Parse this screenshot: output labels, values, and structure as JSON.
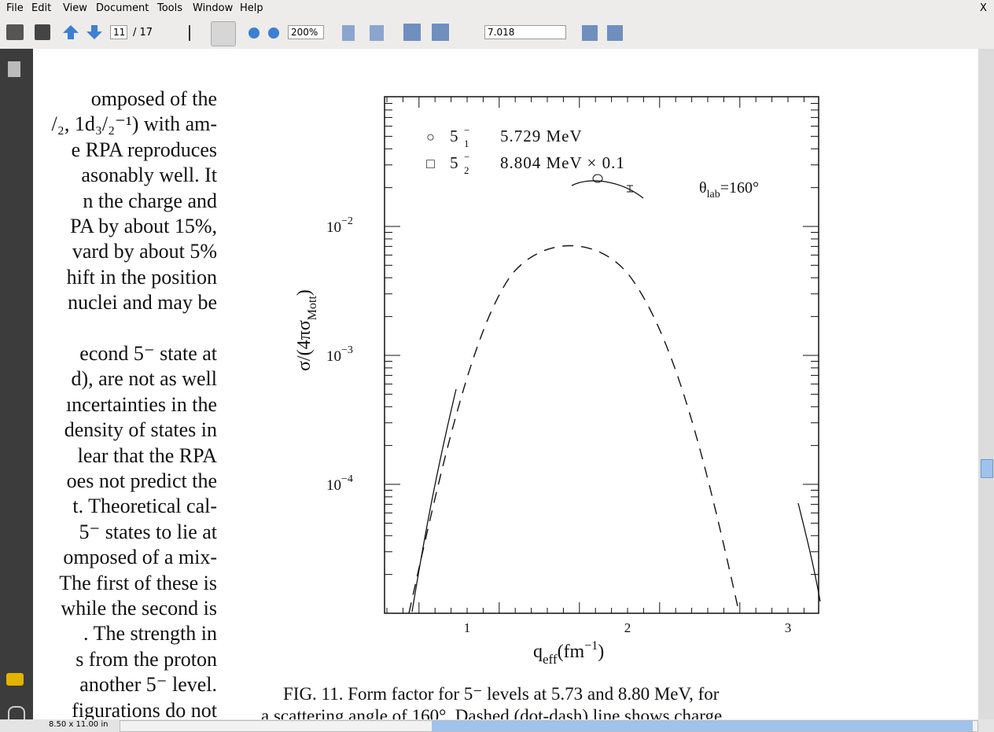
{
  "menu": [
    "File",
    "Edit",
    "View",
    "Document",
    "Tools",
    "Window",
    "Help"
  ],
  "close": "X",
  "toolbar": {
    "page": "11",
    "page_total": "/ 17",
    "zoom": "200%",
    "coordinate": "7.018"
  },
  "page_text": {
    "lines": [
      "omposed of the",
      "/₂, 1d₃/₂⁻¹) with am-",
      "e RPA reproduces",
      "asonably well. It",
      "n the charge and",
      "PA by about 15%,",
      "vard by about 5%",
      "hift in the position",
      "nuclei and may be",
      "econd 5⁻ state at",
      "d), are not as well",
      "ıncertainties in the",
      "density of states in",
      "lear that the RPA",
      "oes not predict the",
      "t. Theoretical cal-",
      "5⁻ states to lie at",
      "omposed of a mix-",
      "The first of these is",
      "while the second is",
      ". The strength in",
      "s from the proton",
      "another 5⁻ level.",
      "figurations do not"
    ],
    "caption": [
      "FIG. 11. Form factor for 5⁻ levels at 5.73 and 8.80 MeV, for",
      "a scattering angle of 160°. Dashed (dot-dash) line shows charge"
    ]
  },
  "figure": {
    "legend": [
      {
        "symbol": "○",
        "state": "5",
        "sub": "1",
        "sup": "−",
        "energy": "5.729 MeV"
      },
      {
        "symbol": "□",
        "state": "5",
        "sub": "2",
        "sup": "−",
        "energy": "8.804 MeV × 0.1"
      }
    ],
    "annotation": {
      "base": "θ",
      "sub": "lab",
      "rest": "=160°"
    },
    "ylabel": {
      "pre": "σ/(4πσ",
      "sub": "Mott",
      "post": ")"
    },
    "xlabel": {
      "base": "q",
      "sub": "eff",
      "pre": "(fm",
      "sup": "−1",
      "post": ")"
    },
    "yticks": [
      {
        "base": "10",
        "exp": "−2"
      },
      {
        "base": "10",
        "exp": "−3"
      },
      {
        "base": "10",
        "exp": "−4"
      }
    ],
    "xticks": [
      "1",
      "2",
      "3"
    ]
  },
  "status": "8.50 x 11.00 in"
}
